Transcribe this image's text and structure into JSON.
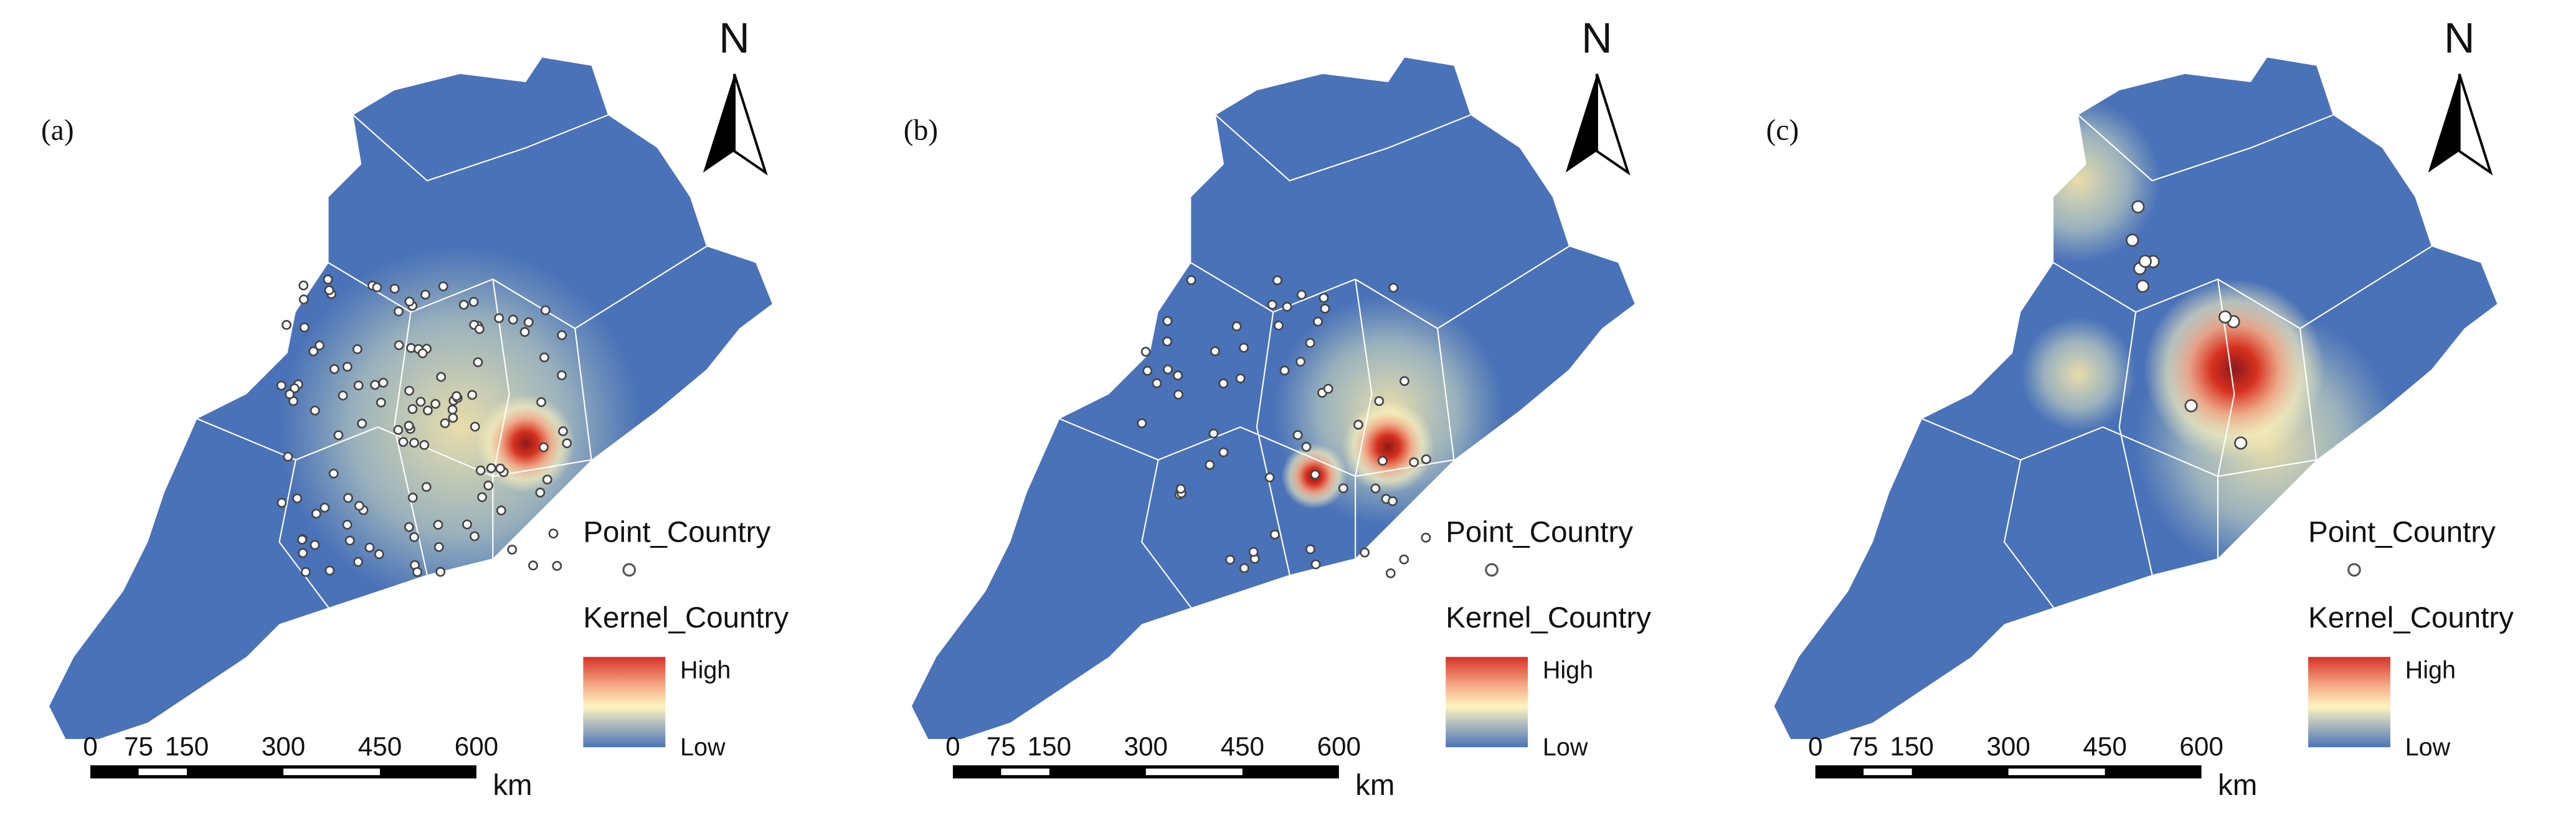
{
  "panels": [
    {
      "label": "(a)",
      "north": "N",
      "legend": {
        "point_title": "Point_Country",
        "kernel_title": "Kernel_Country",
        "high": "High",
        "low": "Low"
      },
      "scale": {
        "ticks": [
          0,
          75,
          150,
          300,
          450,
          600
        ],
        "unit": "km"
      }
    },
    {
      "label": "(b)",
      "north": "N",
      "legend": {
        "point_title": "Point_Country",
        "kernel_title": "Kernel_Country",
        "high": "High",
        "low": "Low"
      },
      "scale": {
        "ticks": [
          0,
          75,
          150,
          300,
          450,
          600
        ],
        "unit": "km"
      }
    },
    {
      "label": "(c)",
      "north": "N",
      "legend": {
        "point_title": "Point_Country",
        "kernel_title": "Kernel_Country",
        "high": "High",
        "low": "Low"
      },
      "scale": {
        "ticks": [
          0,
          75,
          150,
          300,
          450,
          600
        ],
        "unit": "km"
      }
    }
  ]
}
